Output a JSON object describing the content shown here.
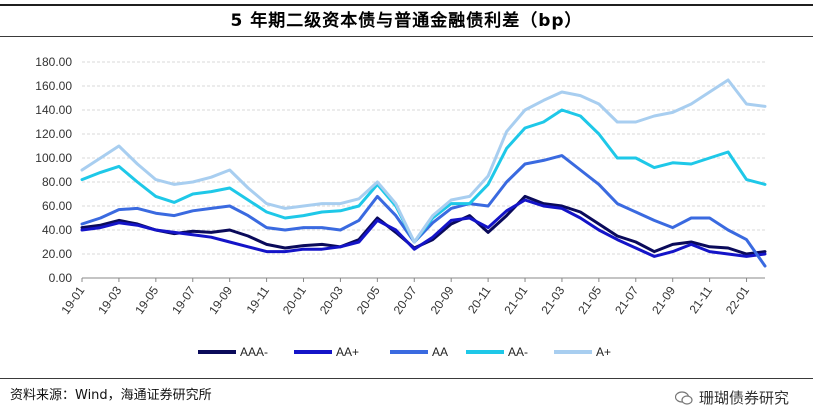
{
  "header": {
    "title": "5 年期二级资本债与普通金融债利差（bp）"
  },
  "footer": {
    "source": "资料来源：Wind，海通证券研究所",
    "watermark": "珊瑚债券研究",
    "watermark_icon": "wechat-icon"
  },
  "chart_data": {
    "type": "line",
    "title": "5 年期二级资本债与普通金融债利差（bp）",
    "xlabel": "",
    "ylabel": "",
    "ylim": [
      0,
      180
    ],
    "yticks": [
      "0.00",
      "20.00",
      "40.00",
      "60.00",
      "80.00",
      "100.00",
      "120.00",
      "140.00",
      "160.00",
      "180.00"
    ],
    "xticks": [
      "19-01",
      "19-03",
      "19-05",
      "19-07",
      "19-09",
      "19-11",
      "20-01",
      "20-03",
      "20-05",
      "20-07",
      "20-09",
      "20-11",
      "21-01",
      "21-03",
      "21-05",
      "21-07",
      "21-09",
      "21-11",
      "22-01"
    ],
    "grid": true,
    "legend_position": "bottom",
    "x": [
      "19-01",
      "19-02",
      "19-03",
      "19-04",
      "19-05",
      "19-06",
      "19-07",
      "19-08",
      "19-09",
      "19-10",
      "19-11",
      "19-12",
      "20-01",
      "20-02",
      "20-03",
      "20-04",
      "20-05",
      "20-06",
      "20-07",
      "20-08",
      "20-09",
      "20-10",
      "20-11",
      "20-12",
      "21-01",
      "21-02",
      "21-03",
      "21-04",
      "21-05",
      "21-06",
      "21-07",
      "21-08",
      "21-09",
      "21-10",
      "21-11",
      "21-12",
      "22-01",
      "22-02"
    ],
    "series": [
      {
        "name": "AAA-",
        "color": "#0a0a5a",
        "values": [
          42,
          44,
          48,
          45,
          40,
          37,
          39,
          38,
          40,
          35,
          28,
          25,
          27,
          28,
          26,
          32,
          50,
          38,
          25,
          32,
          45,
          52,
          38,
          52,
          68,
          62,
          60,
          55,
          45,
          35,
          30,
          22,
          28,
          30,
          26,
          25,
          20,
          22
        ]
      },
      {
        "name": "AA+",
        "color": "#1414c8",
        "values": [
          40,
          42,
          46,
          44,
          40,
          38,
          36,
          34,
          30,
          26,
          22,
          22,
          24,
          24,
          26,
          30,
          48,
          40,
          24,
          34,
          48,
          50,
          42,
          56,
          65,
          60,
          58,
          50,
          40,
          32,
          25,
          18,
          22,
          28,
          22,
          20,
          18,
          20
        ]
      },
      {
        "name": "AA",
        "color": "#3a6ae0",
        "values": [
          45,
          50,
          57,
          58,
          54,
          52,
          56,
          58,
          60,
          52,
          42,
          40,
          42,
          42,
          40,
          48,
          68,
          52,
          30,
          46,
          58,
          62,
          60,
          80,
          95,
          98,
          102,
          90,
          78,
          62,
          55,
          48,
          42,
          50,
          50,
          40,
          32,
          10
        ]
      },
      {
        "name": "AA-",
        "color": "#1ec8e8",
        "values": [
          82,
          88,
          93,
          80,
          68,
          63,
          70,
          72,
          75,
          65,
          55,
          50,
          52,
          55,
          56,
          60,
          78,
          60,
          30,
          50,
          62,
          62,
          78,
          108,
          125,
          130,
          140,
          135,
          120,
          100,
          100,
          92,
          96,
          95,
          100,
          105,
          82,
          78
        ]
      },
      {
        "name": "A+",
        "color": "#a8cef0",
        "values": [
          90,
          100,
          110,
          95,
          82,
          78,
          80,
          84,
          90,
          75,
          62,
          58,
          60,
          62,
          62,
          66,
          80,
          62,
          30,
          52,
          65,
          68,
          85,
          122,
          140,
          148,
          155,
          152,
          145,
          130,
          130,
          135,
          138,
          145,
          155,
          165,
          145,
          143
        ]
      }
    ]
  }
}
